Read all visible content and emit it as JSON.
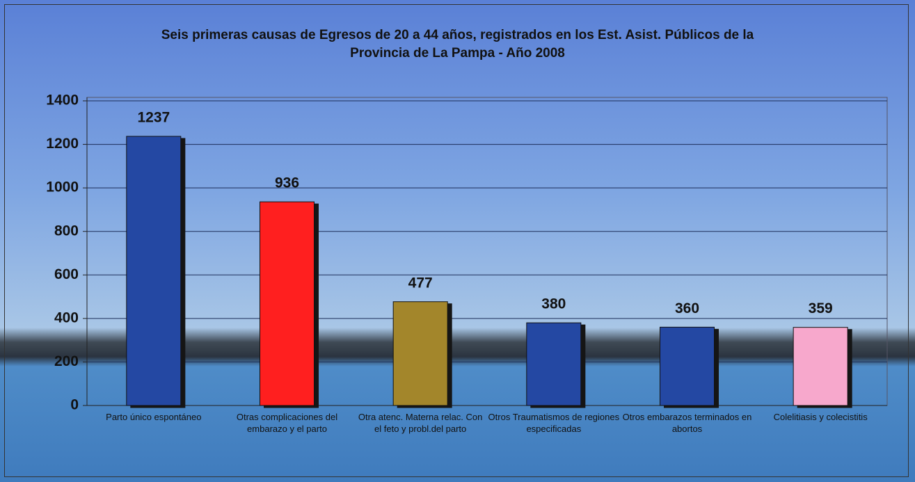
{
  "chart_data": {
    "type": "bar",
    "title": "Seis primeras causas de Egresos de 20 a 44 años, registrados en los Est. Asist. Públicos de la Provincia de La Pampa - Año 2008",
    "categories": [
      "Parto único espontáneo",
      "Otras complicaciones del embarazo y el parto",
      "Otra atenc. Materna relac. Con el feto y probl.del parto",
      "Otros Traumatismos de regiones especificadas",
      "Otros embarazos terminados en abortos",
      "Colelitiasis y colecistitis"
    ],
    "values": [
      1237,
      936,
      477,
      380,
      360,
      359
    ],
    "colors": [
      "#2448a3",
      "#ff1f1f",
      "#a3862b",
      "#2448a3",
      "#2448a3",
      "#f7a8cc"
    ],
    "ylim": [
      0,
      1400
    ],
    "yticks": [
      0,
      200,
      400,
      600,
      800,
      1000,
      1200,
      1400
    ],
    "grid": true
  }
}
